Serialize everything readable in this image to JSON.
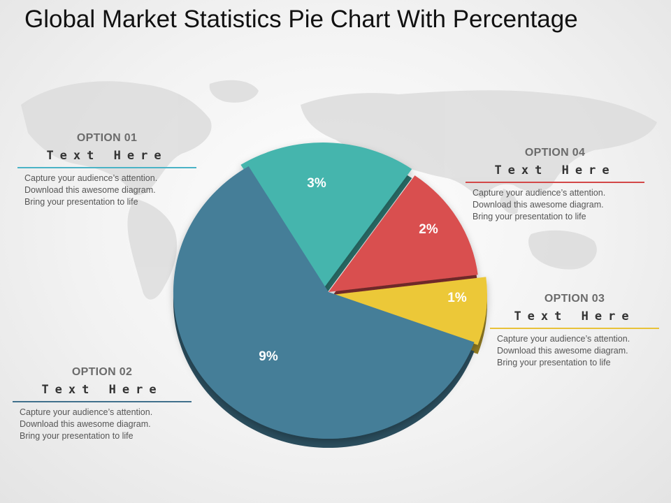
{
  "title": "Global Market Statistics Pie Chart With Percentage",
  "colors": {
    "teal": "#45b5ad",
    "red": "#d95050",
    "yellow": "#ecc838",
    "blue": "#457e98",
    "option01_line": "#4ab3c6",
    "option02_line": "#40708c",
    "option03_line": "#e8c239",
    "option04_line": "#d34848"
  },
  "options": [
    {
      "id": "01",
      "title": "OPTION 01",
      "subtitle": "Text Here",
      "lines": [
        "Capture your audience’s attention.",
        "Download this awesome diagram.",
        "Bring your presentation to life"
      ]
    },
    {
      "id": "02",
      "title": "OPTION 02",
      "subtitle": "Text Here",
      "lines": [
        "Capture your audience’s attention.",
        "Download this awesome diagram.",
        "Bring your presentation to life"
      ]
    },
    {
      "id": "03",
      "title": "OPTION 03",
      "subtitle": "Text Here",
      "lines": [
        "Capture your audience’s attention.",
        "Download this awesome diagram.",
        "Bring your presentation to life"
      ]
    },
    {
      "id": "04",
      "title": "OPTION 04",
      "subtitle": "Text Here",
      "lines": [
        "Capture your audience’s attention.",
        "Download this awesome diagram.",
        "Bring your presentation to life"
      ]
    }
  ],
  "chart_data": {
    "type": "pie",
    "title": "Global Market Statistics Pie Chart With Percentage",
    "slices": [
      {
        "label": "3%",
        "value": 3,
        "color": "#45b5ad",
        "exploded": true
      },
      {
        "label": "2%",
        "value": 2,
        "color": "#d95050",
        "exploded": false
      },
      {
        "label": "1%",
        "value": 1,
        "color": "#ecc838",
        "exploded": true
      },
      {
        "label": "9%",
        "value": 9,
        "color": "#457e98",
        "exploded": false
      }
    ]
  }
}
